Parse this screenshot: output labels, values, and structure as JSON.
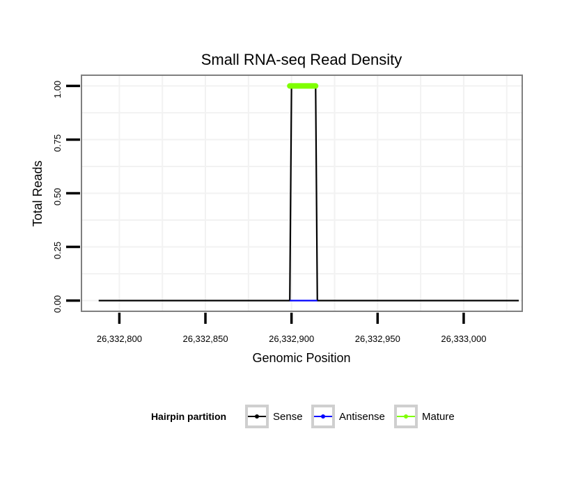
{
  "chart_data": {
    "type": "line",
    "title": "Small RNA-seq Read Density",
    "xlabel": "Genomic Position",
    "ylabel": "Total Reads",
    "xlim": [
      26332778,
      26333034
    ],
    "ylim": [
      -0.05,
      1.05
    ],
    "x_ticks": [
      {
        "value": 26332800,
        "label": "26,332,800"
      },
      {
        "value": 26332850,
        "label": "26,332,850"
      },
      {
        "value": 26332900,
        "label": "26,332,900"
      },
      {
        "value": 26332950,
        "label": "26,332,950"
      },
      {
        "value": 26333000,
        "label": "26,333,000"
      }
    ],
    "y_ticks": [
      {
        "value": 0,
        "label": "0.00"
      },
      {
        "value": 0.25,
        "label": "0.25"
      },
      {
        "value": 0.5,
        "label": "0.50"
      },
      {
        "value": 0.75,
        "label": "0.75"
      },
      {
        "value": 1,
        "label": "1.00"
      }
    ],
    "grid": true,
    "legend": {
      "title": "Hairpin partition",
      "placement": "bottom"
    },
    "series": [
      {
        "name": "Sense",
        "color": "#000000",
        "points": [
          [
            26332788,
            0
          ],
          [
            26332899,
            0
          ],
          [
            26332900,
            1
          ],
          [
            26332914,
            1
          ],
          [
            26332915,
            0
          ],
          [
            26333032,
            0
          ]
        ]
      },
      {
        "name": "Antisense",
        "color": "#0000ff",
        "points": [
          [
            26332899,
            0
          ],
          [
            26332915,
            0
          ]
        ]
      },
      {
        "name": "Mature",
        "color": "#7fff00",
        "points": [
          [
            26332899,
            1
          ],
          [
            26332914,
            1
          ]
        ]
      }
    ]
  }
}
